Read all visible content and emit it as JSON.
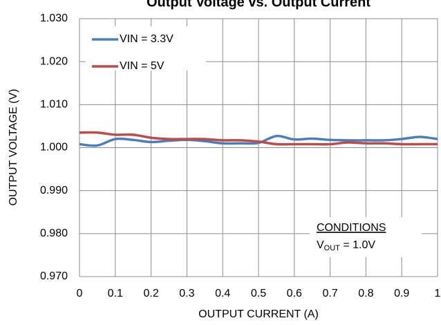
{
  "chart_data": {
    "type": "line",
    "title": "Output Voltage vs. Output Current",
    "x_label": "OUTPUT  CURRENT (A)",
    "y_label": "OUTPUT  VOLTAGE (V)",
    "x": [
      0,
      0.05,
      0.1,
      0.15,
      0.2,
      0.25,
      0.3,
      0.35,
      0.4,
      0.45,
      0.5,
      0.55,
      0.6,
      0.65,
      0.7,
      0.75,
      0.8,
      0.85,
      0.9,
      0.95,
      1
    ],
    "series": [
      {
        "name": "VIN = 3.3V",
        "color": "#4a7ebb",
        "values": [
          1.0008,
          1.0005,
          1.002,
          1.0018,
          1.0013,
          1.0016,
          1.0018,
          1.0015,
          1.001,
          1.001,
          1.0011,
          1.0027,
          1.0019,
          1.0021,
          1.0018,
          1.0017,
          1.0017,
          1.0017,
          1.002,
          1.0025,
          1.002
        ]
      },
      {
        "name": "VIN = 5V",
        "color": "#be4b48",
        "values": [
          1.0035,
          1.0035,
          1.003,
          1.003,
          1.0023,
          1.002,
          1.002,
          1.002,
          1.0017,
          1.0017,
          1.0014,
          1.0008,
          1.0008,
          1.0008,
          1.0008,
          1.0012,
          1.001,
          1.001,
          1.0008,
          1.0008,
          1.0008
        ]
      }
    ],
    "xlim": [
      0,
      1
    ],
    "xticks": [
      0,
      0.1,
      0.2,
      0.3,
      0.4,
      0.5,
      0.6,
      0.7,
      0.8,
      0.9,
      1
    ],
    "ylim": [
      0.97,
      1.03
    ],
    "yticks": [
      {
        "value": 0.97,
        "label": "0.970"
      },
      {
        "value": 0.98,
        "label": "0.980"
      },
      {
        "value": 0.99,
        "label": "0.990"
      },
      {
        "value": 1.0,
        "label": "1.000"
      },
      {
        "value": 1.01,
        "label": "1.010"
      },
      {
        "value": 1.02,
        "label": "1.020"
      },
      {
        "value": 1.03,
        "label": "1.030"
      }
    ],
    "grid": true,
    "legend": "upper left",
    "conditions_title": "CONDITIONS",
    "conditions_line": [
      "V",
      "OUT",
      " = 1.0V"
    ]
  }
}
